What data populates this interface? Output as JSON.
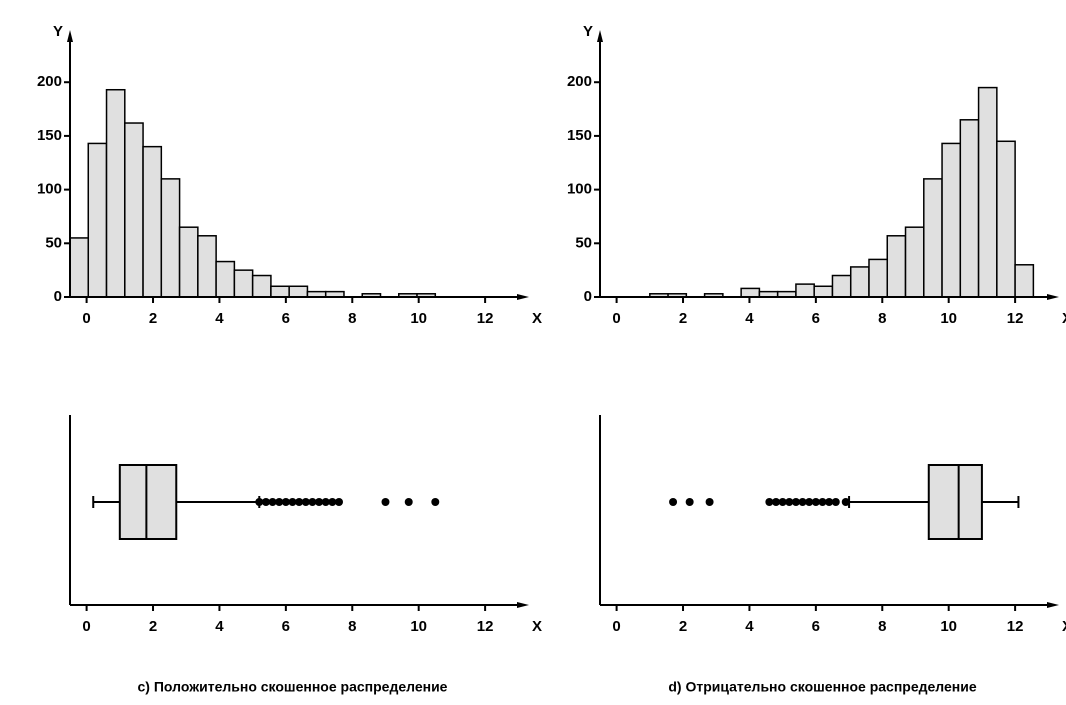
{
  "chart_data": [
    {
      "type": "histogram",
      "y_label": "Y",
      "x_label": "X",
      "bins": [
        -0.5,
        0.05,
        0.6,
        1.15,
        1.7,
        2.25,
        2.8,
        3.35,
        3.9,
        4.45,
        5.0,
        5.55,
        6.1,
        6.65,
        7.2,
        7.75,
        8.3,
        8.85,
        9.4,
        9.95,
        10.5
      ],
      "values": [
        55,
        143,
        193,
        162,
        140,
        110,
        65,
        57,
        33,
        25,
        20,
        10,
        10,
        5,
        5,
        0,
        3,
        0,
        3,
        3
      ],
      "color": "#e0e0e0",
      "xlim": [
        -0.5,
        12.9
      ],
      "xticks": [
        0,
        2,
        4,
        6,
        8,
        10,
        12
      ],
      "ylim": [
        0,
        230
      ],
      "yticks": [
        0,
        50,
        100,
        150,
        200
      ]
    },
    {
      "type": "histogram",
      "y_label": "Y",
      "x_label": "X",
      "bins": [
        1.0,
        1.55,
        2.1,
        2.65,
        3.2,
        3.75,
        4.3,
        4.85,
        5.4,
        5.95,
        6.5,
        7.05,
        7.6,
        8.15,
        8.7,
        9.25,
        9.8,
        10.35,
        10.9,
        11.45,
        12.0,
        12.55
      ],
      "values": [
        3,
        3,
        0,
        3,
        0,
        8,
        5,
        5,
        12,
        10,
        20,
        28,
        35,
        57,
        65,
        110,
        143,
        165,
        195,
        145,
        30
      ],
      "color": "#e0e0e0",
      "xlim": [
        -0.5,
        12.9
      ],
      "xticks": [
        0,
        2,
        4,
        6,
        8,
        10,
        12
      ],
      "ylim": [
        0,
        230
      ],
      "yticks": [
        0,
        50,
        100,
        150,
        200
      ]
    },
    {
      "type": "box",
      "x_label": "X",
      "caption": "c) Положительно скошенное распределение",
      "whislo": 0.2,
      "q1": 1.0,
      "med": 1.8,
      "q3": 2.7,
      "whishi": 5.2,
      "fliers": [
        5.2,
        5.4,
        5.6,
        5.8,
        6.0,
        6.2,
        6.4,
        6.6,
        6.8,
        7.0,
        7.2,
        7.4,
        7.6,
        9.0,
        9.7,
        10.5
      ],
      "color": "#e0e0e0",
      "xlim": [
        -0.5,
        12.9
      ],
      "xticks": [
        0,
        2,
        4,
        6,
        8,
        10,
        12
      ]
    },
    {
      "type": "box",
      "x_label": "X",
      "caption": "d) Отрицательно скошенное распределение",
      "whislo": 7.0,
      "q1": 9.4,
      "med": 10.3,
      "q3": 11.0,
      "whishi": 12.1,
      "fliers": [
        1.7,
        2.2,
        2.8,
        4.6,
        4.8,
        5.0,
        5.2,
        5.4,
        5.6,
        5.8,
        6.0,
        6.2,
        6.4,
        6.6,
        6.9
      ],
      "color": "#e0e0e0",
      "xlim": [
        -0.5,
        12.9
      ],
      "xticks": [
        0,
        2,
        4,
        6,
        8,
        10,
        12
      ]
    }
  ]
}
